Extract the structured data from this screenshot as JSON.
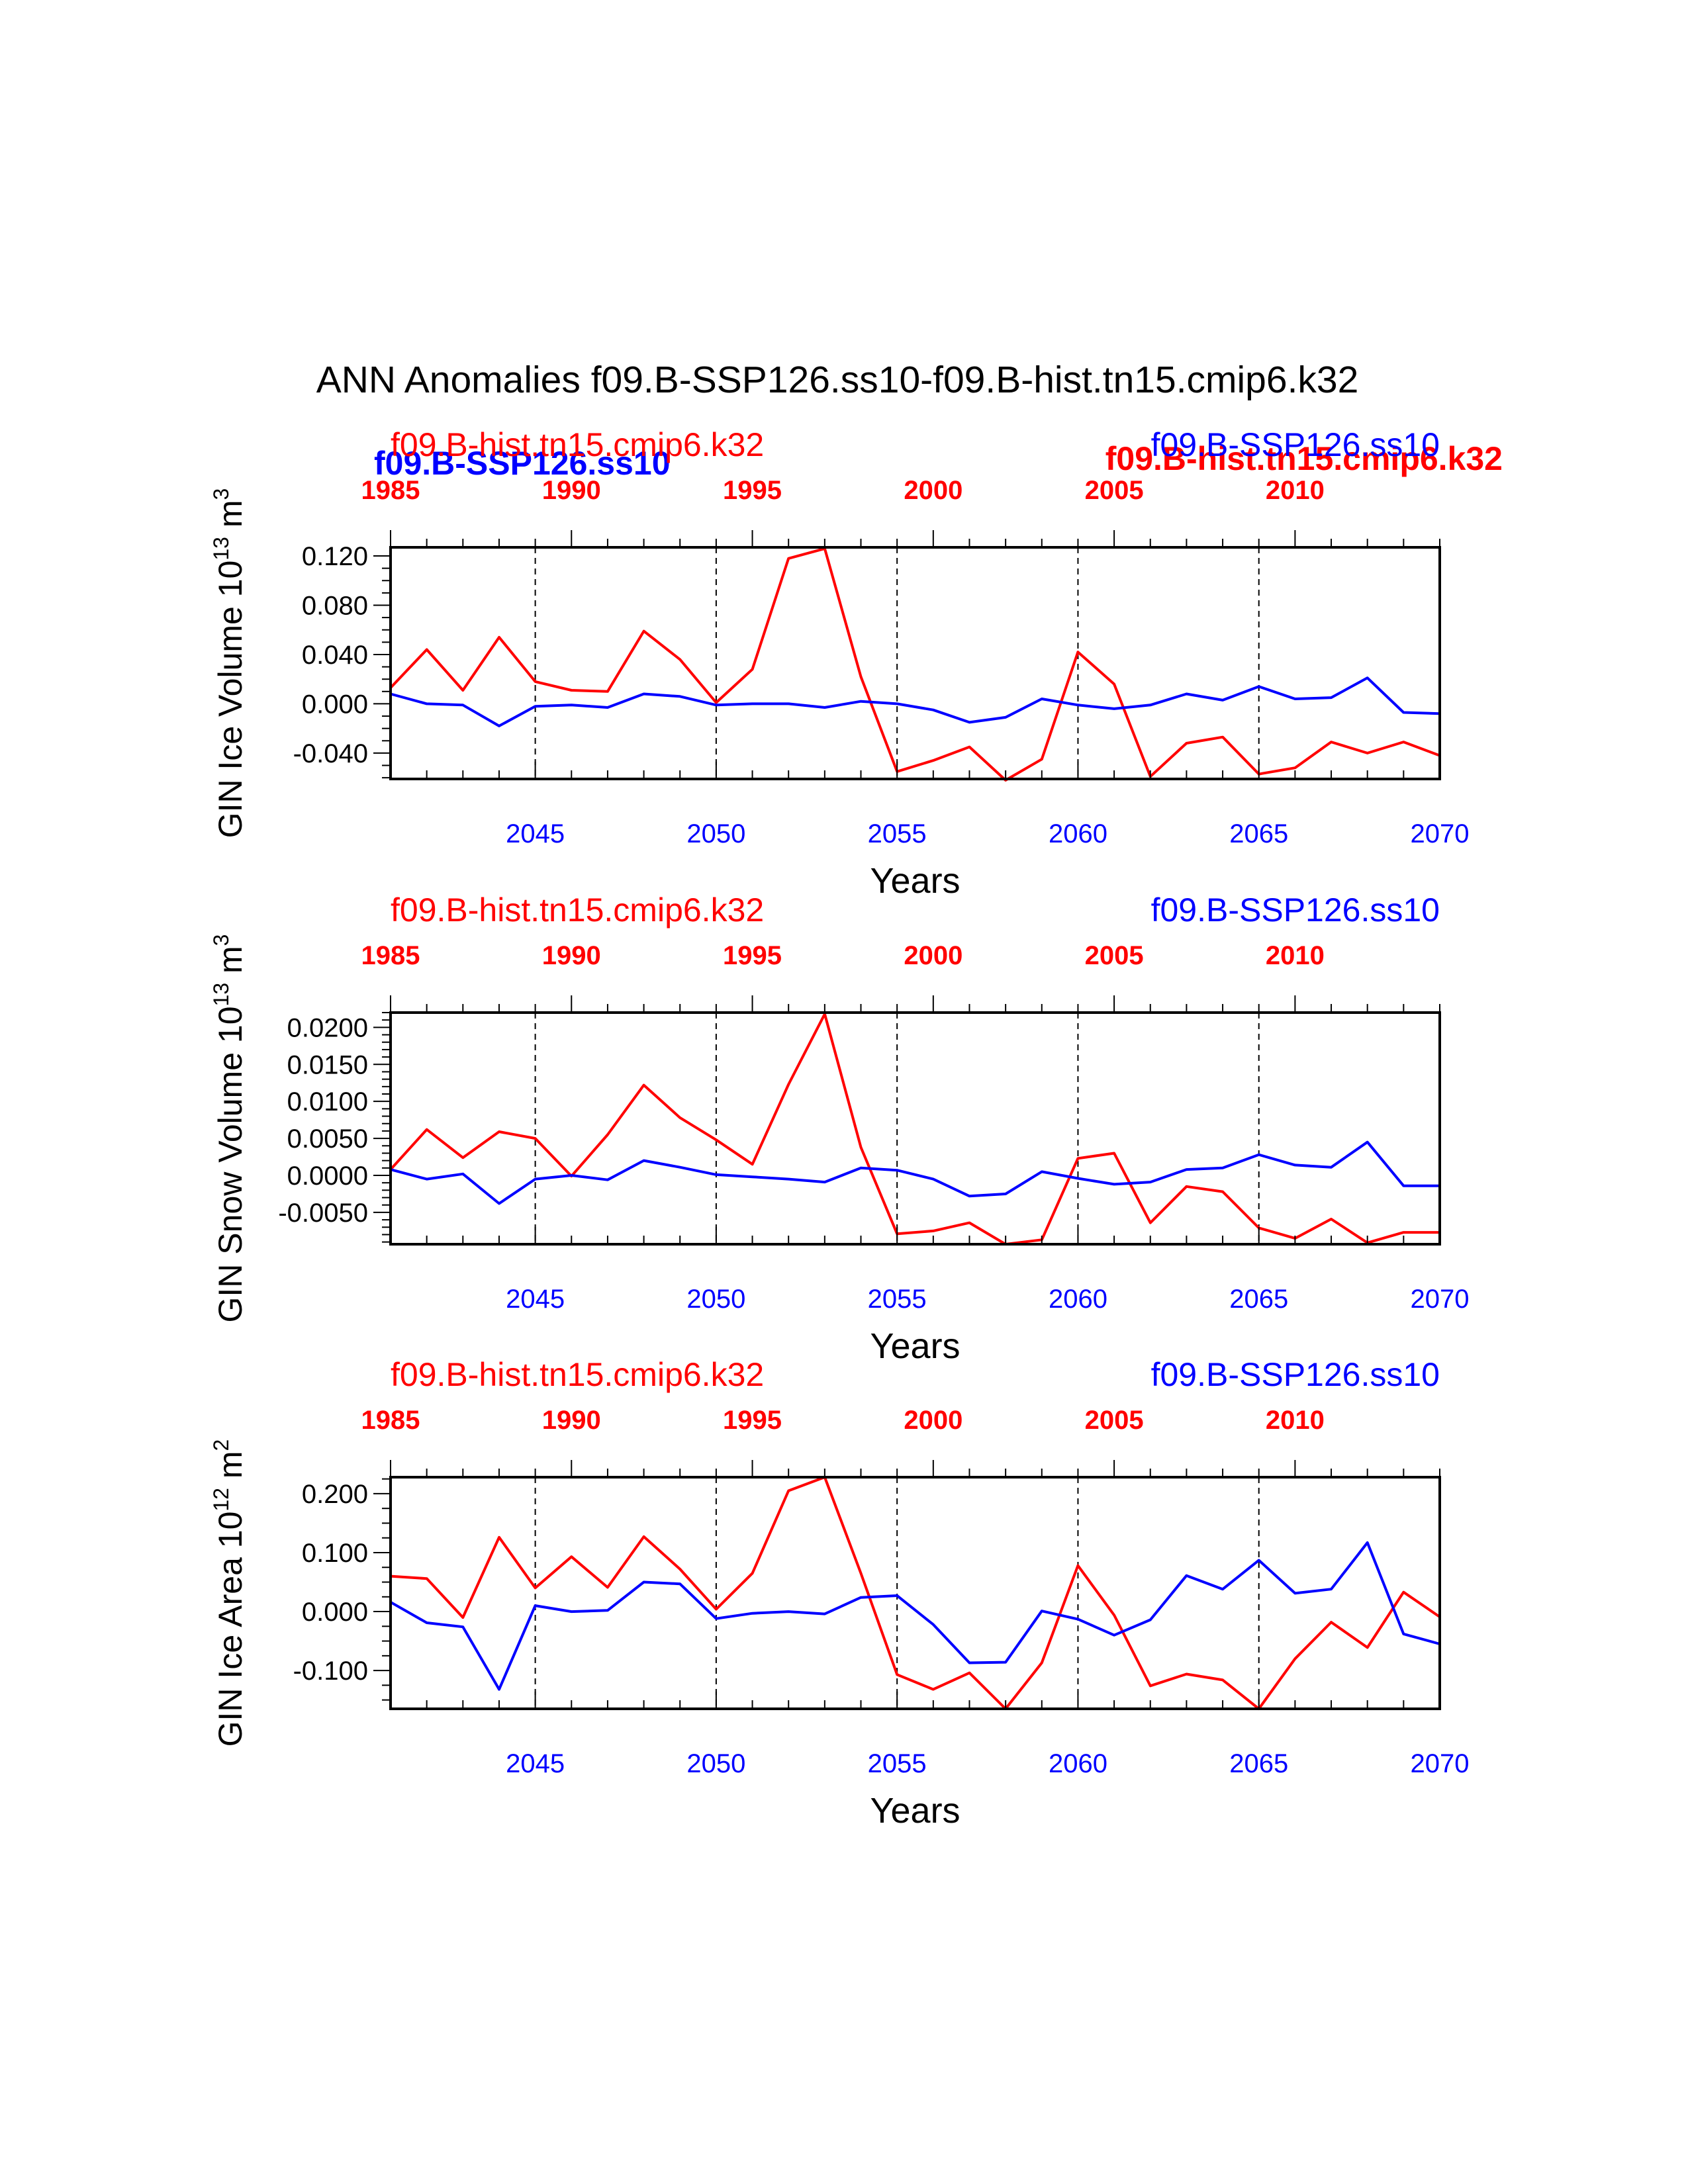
{
  "figure_title": "ANN Anomalies f09.B-SSP126.ss10-f09.B-hist.tn15.cmip6.k32",
  "overlap_labels": {
    "left": "f09.B-SSP126.ss10",
    "right": "f09.B-hist.tn15.cmip6.k32"
  },
  "colors": {
    "ssp": "#0000ff",
    "hist": "#ff0000",
    "axis": "#000000"
  },
  "chart_data": [
    {
      "type": "line",
      "ylabel_main": "GIN Ice Volume 10",
      "ylabel_exp": "13",
      "ylabel_unit": "m",
      "ylabel_unit_exp": "3",
      "xlabel": "Years",
      "top_left_label": "f09.B-hist.tn15.cmip6.k32",
      "top_right_label": "f09.B-SSP126.ss10",
      "x": [
        2041,
        2042,
        2043,
        2044,
        2045,
        2046,
        2047,
        2048,
        2049,
        2050,
        2051,
        2052,
        2053,
        2054,
        2055,
        2056,
        2057,
        2058,
        2059,
        2060,
        2061,
        2062,
        2063,
        2064,
        2065,
        2066,
        2067,
        2068,
        2069,
        2070
      ],
      "x_ticks": [
        2045,
        2050,
        2055,
        2060,
        2065,
        2070
      ],
      "top_x": [
        1985,
        1986,
        1987,
        1988,
        1989,
        1990,
        1991,
        1992,
        1993,
        1994,
        1995,
        1996,
        1997,
        1998,
        1999,
        2000,
        2001,
        2002,
        2003,
        2004,
        2005,
        2006,
        2007,
        2008,
        2009,
        2010,
        2011,
        2012,
        2013,
        2014
      ],
      "top_ticks": [
        1985,
        1990,
        1995,
        2000,
        2005,
        2010
      ],
      "y_ticks": [
        "0.120",
        "0.080",
        "0.040",
        "0.000",
        "-0.040"
      ],
      "y_tick_values": [
        0.12,
        0.08,
        0.04,
        0.0,
        -0.04
      ],
      "y_minor_step": 0.01,
      "ylim": [
        -0.061,
        0.127
      ],
      "series": [
        {
          "name": "f09.B-hist.tn15.cmip6.k32",
          "color": "#ff0000",
          "values": [
            0.013,
            0.044,
            0.011,
            0.054,
            0.018,
            0.011,
            0.01,
            0.059,
            0.036,
            0.001,
            0.028,
            0.118,
            0.126,
            0.022,
            -0.055,
            -0.046,
            -0.035,
            -0.062,
            -0.045,
            0.042,
            0.016,
            -0.059,
            -0.032,
            -0.027,
            -0.057,
            -0.052,
            -0.031,
            -0.04,
            -0.031,
            -0.042
          ]
        },
        {
          "name": "f09.B-SSP126.ss10",
          "color": "#0000ff",
          "values": [
            0.008,
            0.0,
            -0.001,
            -0.018,
            -0.002,
            -0.001,
            -0.003,
            0.008,
            0.006,
            -0.001,
            0.0,
            0.0,
            -0.003,
            0.002,
            0.0,
            -0.005,
            -0.015,
            -0.011,
            0.004,
            -0.001,
            -0.004,
            -0.001,
            0.008,
            0.003,
            0.014,
            0.004,
            0.005,
            0.021,
            -0.007,
            -0.008
          ]
        }
      ]
    },
    {
      "type": "line",
      "ylabel_main": "GIN Snow Volume 10",
      "ylabel_exp": "13",
      "ylabel_unit": "m",
      "ylabel_unit_exp": "3",
      "xlabel": "Years",
      "top_left_label": "f09.B-hist.tn15.cmip6.k32",
      "top_right_label": "f09.B-SSP126.ss10",
      "x": [
        2041,
        2042,
        2043,
        2044,
        2045,
        2046,
        2047,
        2048,
        2049,
        2050,
        2051,
        2052,
        2053,
        2054,
        2055,
        2056,
        2057,
        2058,
        2059,
        2060,
        2061,
        2062,
        2063,
        2064,
        2065,
        2066,
        2067,
        2068,
        2069,
        2070
      ],
      "x_ticks": [
        2045,
        2050,
        2055,
        2060,
        2065,
        2070
      ],
      "top_x": [
        1985,
        1986,
        1987,
        1988,
        1989,
        1990,
        1991,
        1992,
        1993,
        1994,
        1995,
        1996,
        1997,
        1998,
        1999,
        2000,
        2001,
        2002,
        2003,
        2004,
        2005,
        2006,
        2007,
        2008,
        2009,
        2010,
        2011,
        2012,
        2013,
        2014
      ],
      "top_ticks": [
        1985,
        1990,
        1995,
        2000,
        2005,
        2010
      ],
      "y_ticks": [
        "0.0200",
        "0.0150",
        "0.0100",
        "0.0050",
        "0.0000",
        "-0.0050"
      ],
      "y_tick_values": [
        0.02,
        0.015,
        0.01,
        0.005,
        0.0,
        -0.005
      ],
      "y_minor_step": 0.001,
      "ylim": [
        -0.0093,
        0.022
      ],
      "series": [
        {
          "name": "f09.B-hist.tn15.cmip6.k32",
          "color": "#ff0000",
          "values": [
            0.0008,
            0.0062,
            0.0024,
            0.0059,
            0.005,
            -0.0001,
            0.0055,
            0.0122,
            0.0078,
            0.0048,
            0.0015,
            0.0123,
            0.0218,
            0.0038,
            -0.0079,
            -0.0075,
            -0.0064,
            -0.0093,
            -0.0087,
            0.0023,
            0.003,
            -0.0064,
            -0.0015,
            -0.0022,
            -0.0071,
            -0.0085,
            -0.0059,
            -0.0091,
            -0.0077,
            -0.0077
          ]
        },
        {
          "name": "f09.B-SSP126.ss10",
          "color": "#0000ff",
          "values": [
            0.0008,
            -0.0005,
            0.0002,
            -0.0038,
            -0.0005,
            0.0,
            -0.0006,
            0.002,
            0.0011,
            0.0001,
            -0.0002,
            -0.0005,
            -0.0009,
            0.001,
            0.0007,
            -0.0005,
            -0.0028,
            -0.0025,
            0.0005,
            -0.0004,
            -0.0012,
            -0.0009,
            0.0008,
            0.001,
            0.0028,
            0.0014,
            0.0011,
            0.0045,
            -0.0014,
            -0.0014
          ]
        }
      ]
    },
    {
      "type": "line",
      "ylabel_main": "GIN Ice Area 10",
      "ylabel_exp": "12",
      "ylabel_unit": "m",
      "ylabel_unit_exp": "2",
      "xlabel": "Years",
      "top_left_label": "f09.B-hist.tn15.cmip6.k32",
      "top_right_label": "f09.B-SSP126.ss10",
      "x": [
        2041,
        2042,
        2043,
        2044,
        2045,
        2046,
        2047,
        2048,
        2049,
        2050,
        2051,
        2052,
        2053,
        2054,
        2055,
        2056,
        2057,
        2058,
        2059,
        2060,
        2061,
        2062,
        2063,
        2064,
        2065,
        2066,
        2067,
        2068,
        2069,
        2070
      ],
      "x_ticks": [
        2045,
        2050,
        2055,
        2060,
        2065,
        2070
      ],
      "top_x": [
        1985,
        1986,
        1987,
        1988,
        1989,
        1990,
        1991,
        1992,
        1993,
        1994,
        1995,
        1996,
        1997,
        1998,
        1999,
        2000,
        2001,
        2002,
        2003,
        2004,
        2005,
        2006,
        2007,
        2008,
        2009,
        2010,
        2011,
        2012,
        2013,
        2014
      ],
      "top_ticks": [
        1985,
        1990,
        1995,
        2000,
        2005,
        2010
      ],
      "y_ticks": [
        "0.200",
        "0.100",
        "0.000",
        "-0.100"
      ],
      "y_tick_values": [
        0.2,
        0.1,
        0.0,
        -0.1
      ],
      "y_minor_step": 0.025,
      "ylim": [
        -0.165,
        0.228
      ],
      "series": [
        {
          "name": "f09.B-hist.tn15.cmip6.k32",
          "color": "#ff0000",
          "values": [
            0.06,
            0.056,
            -0.01,
            0.126,
            0.04,
            0.093,
            0.041,
            0.127,
            0.072,
            0.004,
            0.065,
            0.205,
            0.228,
            0.065,
            -0.107,
            -0.132,
            -0.104,
            -0.165,
            -0.087,
            0.078,
            -0.006,
            -0.126,
            -0.106,
            -0.116,
            -0.165,
            -0.08,
            -0.018,
            -0.061,
            0.033,
            -0.009
          ]
        },
        {
          "name": "f09.B-SSP126.ss10",
          "color": "#0000ff",
          "values": [
            0.016,
            -0.019,
            -0.026,
            -0.132,
            0.01,
            0.0,
            0.002,
            0.05,
            0.047,
            -0.012,
            -0.003,
            0.0,
            -0.004,
            0.024,
            0.027,
            -0.022,
            -0.087,
            -0.086,
            0.001,
            -0.013,
            -0.04,
            -0.014,
            0.061,
            0.038,
            0.087,
            0.031,
            0.038,
            0.117,
            -0.038,
            -0.055
          ]
        }
      ]
    }
  ]
}
